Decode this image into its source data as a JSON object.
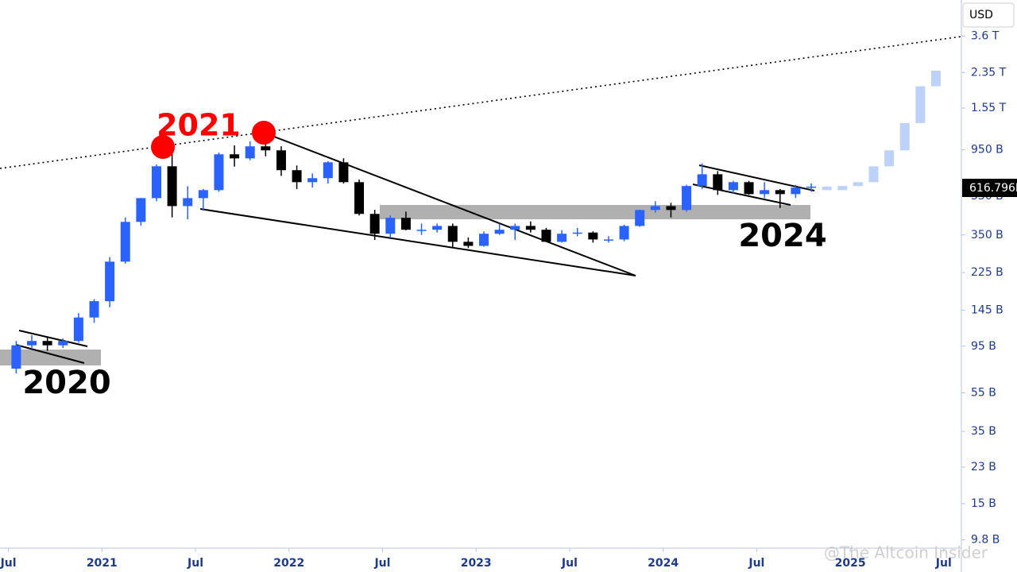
{
  "chart_data": {
    "type": "candlestick",
    "currency": "USD",
    "log_scale": true,
    "grid": false,
    "up_color": "#2962ff",
    "down_color": "#000000",
    "last_price_label": "616.796B",
    "annotations": [
      "2021",
      "2020",
      "2024"
    ],
    "watermark": "@The Altcoin Insider",
    "xlim": [
      "2020-06-15",
      "2025-08-05"
    ],
    "xticks": [
      {
        "value": "2020-07",
        "label": "Jul"
      },
      {
        "value": "2021-01",
        "label": "2021"
      },
      {
        "value": "2021-07",
        "label": "Jul"
      },
      {
        "value": "2022-01",
        "label": "2022"
      },
      {
        "value": "2022-07",
        "label": "Jul"
      },
      {
        "value": "2023-01",
        "label": "2023"
      },
      {
        "value": "2023-07",
        "label": "Jul"
      },
      {
        "value": "2024-01",
        "label": "2024"
      },
      {
        "value": "2024-07",
        "label": "Jul"
      },
      {
        "value": "2025-01",
        "label": "2025"
      },
      {
        "value": "2025-07",
        "label": "Jul"
      }
    ],
    "ylim": [
      8900000000,
      5500000000000
    ],
    "yticks": [
      {
        "value": 9800000000,
        "label": "9.8 B"
      },
      {
        "value": 15000000000,
        "label": "15 B"
      },
      {
        "value": 23000000000,
        "label": "23 B"
      },
      {
        "value": 35000000000,
        "label": "35 B"
      },
      {
        "value": 55000000000,
        "label": "55 B"
      },
      {
        "value": 95000000000,
        "label": "95 B"
      },
      {
        "value": 145000000000,
        "label": "145 B"
      },
      {
        "value": 225000000000,
        "label": "225 B"
      },
      {
        "value": 350000000000,
        "label": "350 B"
      },
      {
        "value": 550000000000,
        "label": "550 B"
      },
      {
        "value": 950000000000,
        "label": "950 B"
      },
      {
        "value": 1550000000000,
        "label": "1.55 T"
      },
      {
        "value": 2350000000000,
        "label": "2.35 T"
      },
      {
        "value": 3600000000000,
        "label": "3.6 T"
      }
    ],
    "x": [
      "2020-07",
      "2020-08",
      "2020-09",
      "2020-10",
      "2020-11",
      "2020-12",
      "2021-01",
      "2021-02",
      "2021-03",
      "2021-04",
      "2021-05",
      "2021-06",
      "2021-07",
      "2021-08",
      "2021-09",
      "2021-10",
      "2021-11",
      "2021-12",
      "2022-01",
      "2022-02",
      "2022-03",
      "2022-04",
      "2022-05",
      "2022-06",
      "2022-07",
      "2022-08",
      "2022-09",
      "2022-10",
      "2022-11",
      "2022-12",
      "2023-01",
      "2023-02",
      "2023-03",
      "2023-04",
      "2023-05",
      "2023-06",
      "2023-07",
      "2023-08",
      "2023-09",
      "2023-10",
      "2023-11",
      "2023-12",
      "2024-01",
      "2024-02",
      "2024-03",
      "2024-04",
      "2024-05",
      "2024-06",
      "2024-07",
      "2024-08",
      "2024-09",
      "2024-10"
    ],
    "open": [
      73000000000.0,
      96000000000.0,
      101000000000.0,
      96000000000.0,
      101000000000.0,
      133000000000.0,
      161000000000.0,
      256000000000.0,
      408000000000.0,
      539000000000.0,
      783000000000.0,
      491000000000.0,
      539000000000.0,
      592000000000.0,
      901000000000.0,
      859000000000.0,
      989000000000.0,
      944000000000.0,
      748000000000.0,
      650000000000.0,
      681000000000.0,
      820000000000.0,
      650000000000.0,
      448000000000.0,
      355000000000.0,
      428000000000.0,
      372000000000.0,
      372000000000.0,
      389000000000.0,
      323000000000.0,
      308000000000.0,
      355000000000.0,
      372000000000.0,
      389000000000.0,
      372000000000.0,
      323000000000.0,
      355000000000.0,
      360000000000.0,
      332000000000.0,
      332000000000.0,
      389000000000.0,
      469000000000.0,
      491000000000.0,
      469000000000.0,
      621000000000.0,
      713000000000.0,
      592000000000.0,
      650000000000.0,
      565000000000.0,
      592000000000.0,
      565000000000.0,
      610000000000.0
    ],
    "high": [
      101000000000.0,
      108000000000.0,
      105000000000.0,
      104000000000.0,
      140000000000.0,
      165000000000.0,
      270000000000.0,
      430000000000.0,
      540000000000.0,
      800000000000.0,
      1050000000000.0,
      620000000000.0,
      600000000000.0,
      920000000000.0,
      1000000000000.0,
      1050000000000.0,
      1140000000000.0,
      990000000000.0,
      790000000000.0,
      720000000000.0,
      830000000000.0,
      860000000000.0,
      670000000000.0,
      470000000000.0,
      440000000000.0,
      460000000000.0,
      400000000000.0,
      400000000000.0,
      400000000000.0,
      340000000000.0,
      365000000000.0,
      400000000000.0,
      400000000000.0,
      410000000000.0,
      380000000000.0,
      370000000000.0,
      380000000000.0,
      365000000000.0,
      345000000000.0,
      395000000000.0,
      470000000000.0,
      520000000000.0,
      510000000000.0,
      630000000000.0,
      810000000000.0,
      740000000000.0,
      660000000000.0,
      660000000000.0,
      650000000000.0,
      600000000000.0,
      630000000000.0,
      640000000000.0
    ],
    "low": [
      69000000000.0,
      92000000000.0,
      90000000000.0,
      93000000000.0,
      99000000000.0,
      125000000000.0,
      150000000000.0,
      250000000000.0,
      390000000000.0,
      520000000000.0,
      430000000000.0,
      420000000000.0,
      470000000000.0,
      580000000000.0,
      780000000000.0,
      840000000000.0,
      880000000000.0,
      700000000000.0,
      600000000000.0,
      610000000000.0,
      640000000000.0,
      640000000000.0,
      440000000000.0,
      330000000000.0,
      340000000000.0,
      370000000000.0,
      350000000000.0,
      360000000000.0,
      300000000000.0,
      300000000000.0,
      305000000000.0,
      350000000000.0,
      330000000000.0,
      360000000000.0,
      340000000000.0,
      320000000000.0,
      345000000000.0,
      320000000000.0,
      320000000000.0,
      325000000000.0,
      385000000000.0,
      455000000000.0,
      430000000000.0,
      460000000000.0,
      600000000000.0,
      560000000000.0,
      570000000000.0,
      560000000000.0,
      540000000000.0,
      480000000000.0,
      540000000000.0,
      580000000000.0
    ],
    "close": [
      96000000000.0,
      101000000000.0,
      96000000000.0,
      101000000000.0,
      133000000000.0,
      161000000000.0,
      256000000000.0,
      408000000000.0,
      539000000000.0,
      783000000000.0,
      491000000000.0,
      539000000000.0,
      592000000000.0,
      901000000000.0,
      859000000000.0,
      989000000000.0,
      944000000000.0,
      748000000000.0,
      650000000000.0,
      681000000000.0,
      820000000000.0,
      650000000000.0,
      448000000000.0,
      355000000000.0,
      428000000000.0,
      372000000000.0,
      372000000000.0,
      389000000000.0,
      323000000000.0,
      308000000000.0,
      355000000000.0,
      372000000000.0,
      389000000000.0,
      372000000000.0,
      323000000000.0,
      355000000000.0,
      360000000000.0,
      332000000000.0,
      332000000000.0,
      389000000000.0,
      469000000000.0,
      491000000000.0,
      469000000000.0,
      621000000000.0,
      713000000000.0,
      592000000000.0,
      650000000000.0,
      565000000000.0,
      592000000000.0,
      565000000000.0,
      610000000000.0,
      617000000000.0
    ],
    "projection": {
      "color": "#b3c9f7",
      "x": [
        "2024-11",
        "2024-12",
        "2025-01",
        "2025-02",
        "2025-03",
        "2025-04",
        "2025-05",
        "2025-06"
      ],
      "values": [
        592000000000.0,
        621000000000.0,
        650000000000.0,
        783000000000.0,
        944000000000.0,
        1300000000000.0,
        2000000000000.0,
        2400000000000.0
      ]
    }
  }
}
